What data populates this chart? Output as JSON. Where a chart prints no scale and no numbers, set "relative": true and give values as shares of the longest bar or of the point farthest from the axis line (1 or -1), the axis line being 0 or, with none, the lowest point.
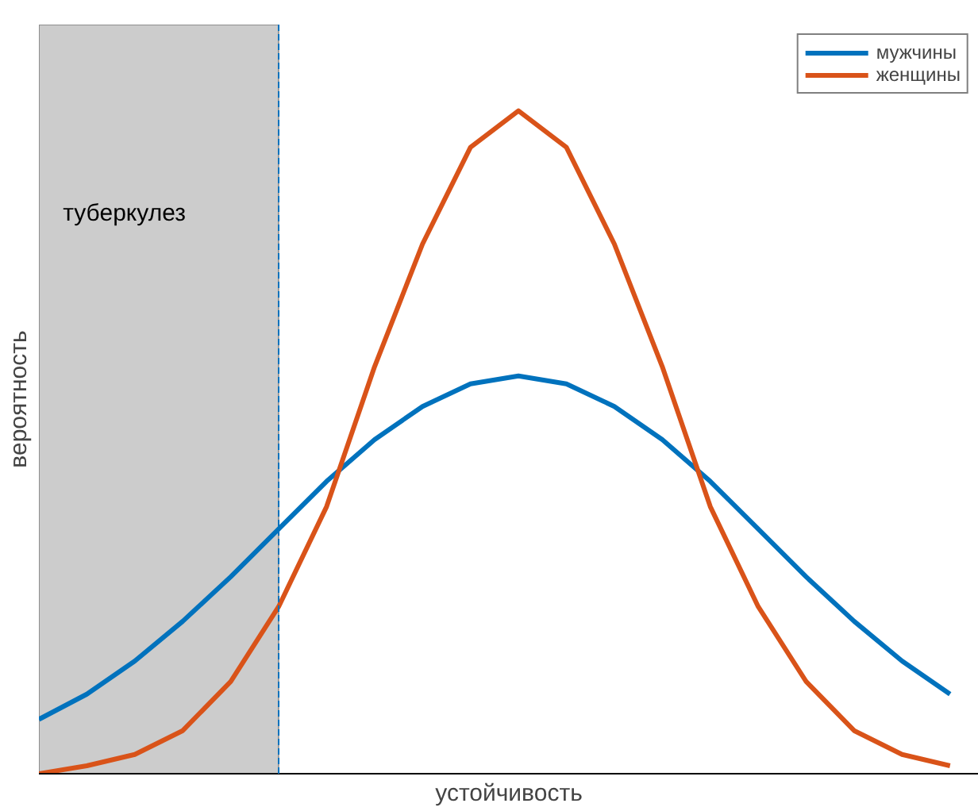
{
  "chart_data": {
    "type": "line",
    "relative": true,
    "xlabel": "устойчивость",
    "ylabel": "вероятность",
    "categories": [
      null,
      null,
      null,
      null,
      null,
      null,
      null,
      null,
      null,
      null,
      null,
      null,
      null,
      null,
      null,
      null,
      null,
      null,
      null,
      null
    ],
    "legend": "top right",
    "marker": "none",
    "line_style": "solid",
    "series": [
      {
        "name": "мужчины",
        "color": "#0072bd",
        "values": [
          0.082,
          0.12,
          0.17,
          0.23,
          0.297,
          0.369,
          0.441,
          0.504,
          0.554,
          0.588,
          0.6,
          0.588,
          0.554,
          0.504,
          0.441,
          0.369,
          0.297,
          0.23,
          0.17,
          0.12
        ]
      },
      {
        "name": "женщины",
        "color": "#d95319",
        "values": [
          0,
          0.012,
          0.029,
          0.065,
          0.139,
          0.252,
          0.403,
          0.614,
          0.799,
          0.945,
          1,
          0.945,
          0.799,
          0.614,
          0.403,
          0.252,
          0.139,
          0.065,
          0.029,
          0.012
        ]
      }
    ],
    "annotations": [
      "туберкулез"
    ]
  }
}
